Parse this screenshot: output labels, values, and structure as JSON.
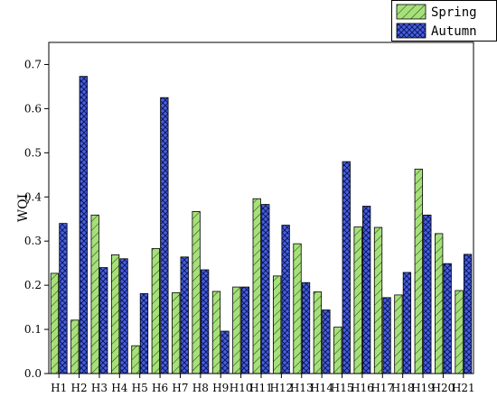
{
  "chart_data": {
    "type": "bar",
    "title": "",
    "xlabel": "",
    "ylabel": "WQI",
    "ylim": [
      0,
      0.75
    ],
    "yticks": [
      "0.0",
      "0.1",
      "0.2",
      "0.3",
      "0.4",
      "0.5",
      "0.6",
      "0.7"
    ],
    "grid": false,
    "legend_position": "top-right",
    "categories": [
      "H1",
      "H2",
      "H3",
      "H4",
      "H5",
      "H6",
      "H7",
      "H8",
      "H9",
      "H10",
      "H11",
      "H12",
      "H13",
      "H14",
      "H15",
      "H16",
      "H17",
      "H18",
      "H19",
      "H20",
      "H21"
    ],
    "series": [
      {
        "name": "Spring",
        "color": "#a6e07a",
        "pattern": "diagonal-hatch",
        "values": [
          0.227,
          0.121,
          0.359,
          0.269,
          0.063,
          0.283,
          0.183,
          0.367,
          0.186,
          0.196,
          0.396,
          0.221,
          0.294,
          0.185,
          0.105,
          0.332,
          0.331,
          0.178,
          0.463,
          0.317,
          0.188
        ]
      },
      {
        "name": "Autumn",
        "color": "#4a5fe0",
        "pattern": "crosshatch",
        "values": [
          0.34,
          0.673,
          0.24,
          0.26,
          0.181,
          0.625,
          0.264,
          0.235,
          0.096,
          0.196,
          0.383,
          0.336,
          0.206,
          0.144,
          0.48,
          0.379,
          0.172,
          0.229,
          0.359,
          0.249,
          0.27
        ]
      }
    ]
  }
}
